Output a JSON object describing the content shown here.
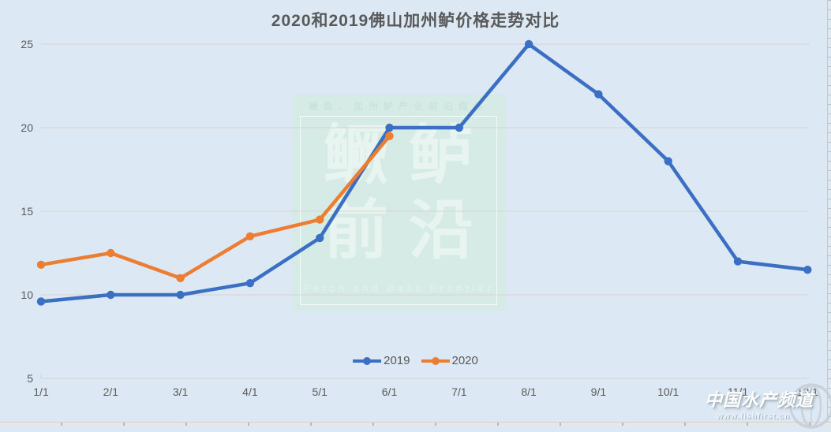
{
  "title": "2020和2019佛山加州鲈价格走势对比",
  "chart_data": {
    "type": "line",
    "title": "2020和2019佛山加州鲈价格走势对比",
    "categories": [
      "1/1",
      "2/1",
      "3/1",
      "4/1",
      "5/1",
      "6/1",
      "7/1",
      "8/1",
      "9/1",
      "10/1",
      "11/1",
      "12/1"
    ],
    "series": [
      {
        "name": "2019",
        "color": "#3a6fc4",
        "values": [
          9.6,
          10,
          10,
          10.7,
          13.4,
          20,
          20,
          25,
          22,
          18,
          12,
          11.5
        ]
      },
      {
        "name": "2020",
        "color": "#ed7d31",
        "values": [
          11.8,
          12.5,
          11,
          13.5,
          14.5,
          19.5
        ]
      }
    ],
    "xlabel": "",
    "ylabel": "",
    "ylim": [
      5,
      25
    ],
    "y_ticks": [
      5,
      10,
      15,
      20,
      25
    ],
    "grid": true,
    "legend_position": "bottom"
  },
  "watermark": {
    "top_text": "鳜鱼、加州鲈产业前沿媒体",
    "big_line1": "鳜鲈",
    "big_line2": "前沿",
    "bottom_text": "Perch and Bass Frontier"
  },
  "logo": {
    "name": "中国水产频道",
    "url": "www.fishfirst.cn",
    "icon": "globe-icon"
  },
  "colors": {
    "background": "#dce9f5",
    "gridline": "#d7d3ca",
    "text": "#595959",
    "series_2019": "#3a6fc4",
    "series_2020": "#ed7d31",
    "watermark_bg": "#d5eae3",
    "logo_text": "#ffffff"
  }
}
